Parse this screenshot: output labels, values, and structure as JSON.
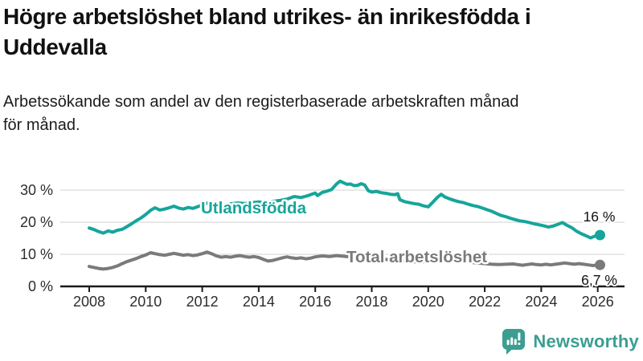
{
  "header": {
    "title_lines": [
      "Högre arbetslöshet bland utrikes- än inrikesfödda i",
      "Uddevalla"
    ],
    "subtitle_lines": [
      "Arbetssökande som andel av den registerbaserade arbetskraften månad",
      "för månad."
    ]
  },
  "footer": {
    "brand": "Newsworthy"
  },
  "colors": {
    "accent_teal": "#16a59b",
    "series_gray": "#7a7a7a",
    "axis": "#1a1a1a",
    "grid": "#d9d9d9",
    "tick_text": "#2d2d2d",
    "logo_teal": "#3b9e91"
  },
  "chart_data": {
    "type": "line",
    "title": "Högre arbetslöshet bland utrikes- än inrikesfödda i Uddevalla",
    "subtitle": "Arbetssökande som andel av den registerbaserade arbetskraften månad för månad.",
    "xlabel": "",
    "ylabel": "",
    "x_range": [
      2007.8,
      2026.6
    ],
    "ylim": [
      0,
      33
    ],
    "grid": "horizontal",
    "legend_position": "inline",
    "x_ticks": [
      2008,
      2010,
      2012,
      2014,
      2016,
      2018,
      2020,
      2022,
      2024,
      2026
    ],
    "y_ticks": [
      {
        "value": 0,
        "label": "0 %"
      },
      {
        "value": 10,
        "label": "10 %"
      },
      {
        "value": 20,
        "label": "20 %"
      },
      {
        "value": 30,
        "label": "30 %"
      }
    ],
    "series": [
      {
        "name": "Utlandsfödda",
        "inline_label": "Utlandsfödda",
        "end_label": "16 %",
        "end_value": 16,
        "color": "#16a59b",
        "points": [
          [
            2008.0,
            18.2
          ],
          [
            2008.17,
            17.7
          ],
          [
            2008.33,
            17.1
          ],
          [
            2008.5,
            16.6
          ],
          [
            2008.67,
            17.3
          ],
          [
            2008.83,
            16.9
          ],
          [
            2009.0,
            17.5
          ],
          [
            2009.17,
            17.8
          ],
          [
            2009.33,
            18.6
          ],
          [
            2009.5,
            19.5
          ],
          [
            2009.67,
            20.5
          ],
          [
            2009.83,
            21.3
          ],
          [
            2010.0,
            22.4
          ],
          [
            2010.17,
            23.7
          ],
          [
            2010.33,
            24.5
          ],
          [
            2010.5,
            23.8
          ],
          [
            2010.67,
            24.1
          ],
          [
            2010.83,
            24.5
          ],
          [
            2011.0,
            25.0
          ],
          [
            2011.17,
            24.4
          ],
          [
            2011.33,
            24.1
          ],
          [
            2011.5,
            24.6
          ],
          [
            2011.67,
            24.3
          ],
          [
            2011.83,
            24.8
          ],
          [
            2012.0,
            25.4
          ],
          [
            2012.17,
            26.0
          ],
          [
            2012.33,
            25.5
          ],
          [
            2012.5,
            25.2
          ],
          [
            2012.67,
            25.5
          ],
          [
            2012.83,
            25.3
          ],
          [
            2013.0,
            25.7
          ],
          [
            2013.25,
            26.0
          ],
          [
            2013.5,
            25.8
          ],
          [
            2013.75,
            26.1
          ],
          [
            2014.0,
            26.3
          ],
          [
            2014.25,
            26.1
          ],
          [
            2014.5,
            26.5
          ],
          [
            2014.75,
            26.8
          ],
          [
            2015.0,
            27.2
          ],
          [
            2015.25,
            28.0
          ],
          [
            2015.5,
            27.7
          ],
          [
            2015.75,
            28.3
          ],
          [
            2016.0,
            29.1
          ],
          [
            2016.08,
            28.3
          ],
          [
            2016.25,
            29.3
          ],
          [
            2016.42,
            29.7
          ],
          [
            2016.58,
            30.2
          ],
          [
            2016.75,
            31.9
          ],
          [
            2016.88,
            32.8
          ],
          [
            2017.0,
            32.3
          ],
          [
            2017.13,
            31.8
          ],
          [
            2017.25,
            31.9
          ],
          [
            2017.38,
            31.4
          ],
          [
            2017.5,
            31.5
          ],
          [
            2017.63,
            32.0
          ],
          [
            2017.75,
            31.6
          ],
          [
            2017.88,
            29.8
          ],
          [
            2018.0,
            29.4
          ],
          [
            2018.17,
            29.6
          ],
          [
            2018.33,
            29.2
          ],
          [
            2018.5,
            29.0
          ],
          [
            2018.67,
            28.7
          ],
          [
            2018.83,
            28.6
          ],
          [
            2018.92,
            28.9
          ],
          [
            2019.0,
            27.0
          ],
          [
            2019.17,
            26.4
          ],
          [
            2019.33,
            26.1
          ],
          [
            2019.5,
            25.8
          ],
          [
            2019.67,
            25.6
          ],
          [
            2019.83,
            25.1
          ],
          [
            2020.0,
            24.8
          ],
          [
            2020.17,
            26.3
          ],
          [
            2020.33,
            27.8
          ],
          [
            2020.46,
            28.7
          ],
          [
            2020.58,
            27.9
          ],
          [
            2020.75,
            27.3
          ],
          [
            2020.92,
            26.8
          ],
          [
            2021.08,
            26.4
          ],
          [
            2021.25,
            26.1
          ],
          [
            2021.42,
            25.6
          ],
          [
            2021.58,
            25.2
          ],
          [
            2021.75,
            24.9
          ],
          [
            2021.92,
            24.4
          ],
          [
            2022.08,
            23.9
          ],
          [
            2022.25,
            23.4
          ],
          [
            2022.42,
            22.7
          ],
          [
            2022.58,
            22.1
          ],
          [
            2022.75,
            21.7
          ],
          [
            2022.92,
            21.2
          ],
          [
            2023.08,
            20.8
          ],
          [
            2023.25,
            20.4
          ],
          [
            2023.42,
            20.2
          ],
          [
            2023.58,
            19.9
          ],
          [
            2023.75,
            19.5
          ],
          [
            2023.92,
            19.2
          ],
          [
            2024.08,
            18.9
          ],
          [
            2024.25,
            18.5
          ],
          [
            2024.42,
            18.8
          ],
          [
            2024.58,
            19.3
          ],
          [
            2024.75,
            19.9
          ],
          [
            2024.92,
            19.0
          ],
          [
            2025.08,
            18.3
          ],
          [
            2025.25,
            17.2
          ],
          [
            2025.42,
            16.4
          ],
          [
            2025.58,
            15.8
          ],
          [
            2025.75,
            15.1
          ],
          [
            2025.88,
            15.6
          ],
          [
            2026.08,
            16.0
          ]
        ]
      },
      {
        "name": "Total arbetslöshet",
        "inline_label": "Total arbetslöshet",
        "end_label": "6,7 %",
        "end_value": 6.7,
        "color": "#7a7a7a",
        "points": [
          [
            2008.0,
            6.2
          ],
          [
            2008.17,
            5.9
          ],
          [
            2008.33,
            5.6
          ],
          [
            2008.5,
            5.4
          ],
          [
            2008.67,
            5.6
          ],
          [
            2008.83,
            5.9
          ],
          [
            2009.0,
            6.4
          ],
          [
            2009.17,
            7.1
          ],
          [
            2009.33,
            7.7
          ],
          [
            2009.5,
            8.2
          ],
          [
            2009.67,
            8.7
          ],
          [
            2009.83,
            9.3
          ],
          [
            2010.0,
            9.8
          ],
          [
            2010.17,
            10.5
          ],
          [
            2010.33,
            10.2
          ],
          [
            2010.5,
            9.9
          ],
          [
            2010.67,
            9.7
          ],
          [
            2010.83,
            10.0
          ],
          [
            2011.0,
            10.3
          ],
          [
            2011.17,
            10.0
          ],
          [
            2011.33,
            9.7
          ],
          [
            2011.5,
            9.9
          ],
          [
            2011.67,
            9.6
          ],
          [
            2011.83,
            9.8
          ],
          [
            2012.0,
            10.2
          ],
          [
            2012.17,
            10.7
          ],
          [
            2012.33,
            10.2
          ],
          [
            2012.5,
            9.5
          ],
          [
            2012.67,
            9.1
          ],
          [
            2012.83,
            9.3
          ],
          [
            2013.0,
            9.1
          ],
          [
            2013.17,
            9.4
          ],
          [
            2013.33,
            9.6
          ],
          [
            2013.5,
            9.3
          ],
          [
            2013.67,
            9.1
          ],
          [
            2013.83,
            9.3
          ],
          [
            2014.0,
            9.0
          ],
          [
            2014.17,
            8.4
          ],
          [
            2014.33,
            7.9
          ],
          [
            2014.5,
            8.1
          ],
          [
            2014.67,
            8.5
          ],
          [
            2014.83,
            8.9
          ],
          [
            2015.0,
            9.2
          ],
          [
            2015.17,
            8.9
          ],
          [
            2015.33,
            8.7
          ],
          [
            2015.5,
            8.9
          ],
          [
            2015.67,
            8.6
          ],
          [
            2015.83,
            8.8
          ],
          [
            2016.0,
            9.2
          ],
          [
            2016.25,
            9.5
          ],
          [
            2016.5,
            9.3
          ],
          [
            2016.75,
            9.6
          ],
          [
            2017.0,
            9.4
          ],
          [
            2017.25,
            9.2
          ],
          [
            2017.5,
            9.0
          ],
          [
            2017.75,
            8.9
          ],
          [
            2018.0,
            8.7
          ],
          [
            2018.25,
            8.6
          ],
          [
            2018.5,
            8.4
          ],
          [
            2018.75,
            8.2
          ],
          [
            2019.0,
            8.0
          ],
          [
            2019.25,
            7.8
          ],
          [
            2019.5,
            7.7
          ],
          [
            2019.75,
            7.6
          ],
          [
            2020.0,
            7.9
          ],
          [
            2020.25,
            8.4
          ],
          [
            2020.5,
            8.7
          ],
          [
            2020.75,
            8.4
          ],
          [
            2021.0,
            8.1
          ],
          [
            2021.25,
            7.8
          ],
          [
            2021.5,
            7.5
          ],
          [
            2021.75,
            7.3
          ],
          [
            2022.0,
            7.1
          ],
          [
            2022.25,
            6.9
          ],
          [
            2022.5,
            6.8
          ],
          [
            2022.75,
            6.9
          ],
          [
            2023.0,
            7.0
          ],
          [
            2023.17,
            6.8
          ],
          [
            2023.33,
            6.6
          ],
          [
            2023.5,
            6.8
          ],
          [
            2023.67,
            7.0
          ],
          [
            2023.83,
            6.8
          ],
          [
            2024.0,
            6.7
          ],
          [
            2024.17,
            6.9
          ],
          [
            2024.33,
            6.7
          ],
          [
            2024.5,
            6.9
          ],
          [
            2024.67,
            7.1
          ],
          [
            2024.83,
            7.3
          ],
          [
            2025.0,
            7.1
          ],
          [
            2025.17,
            6.9
          ],
          [
            2025.33,
            7.1
          ],
          [
            2025.5,
            6.9
          ],
          [
            2025.67,
            6.7
          ],
          [
            2025.83,
            6.5
          ],
          [
            2026.08,
            6.7
          ]
        ]
      }
    ]
  }
}
